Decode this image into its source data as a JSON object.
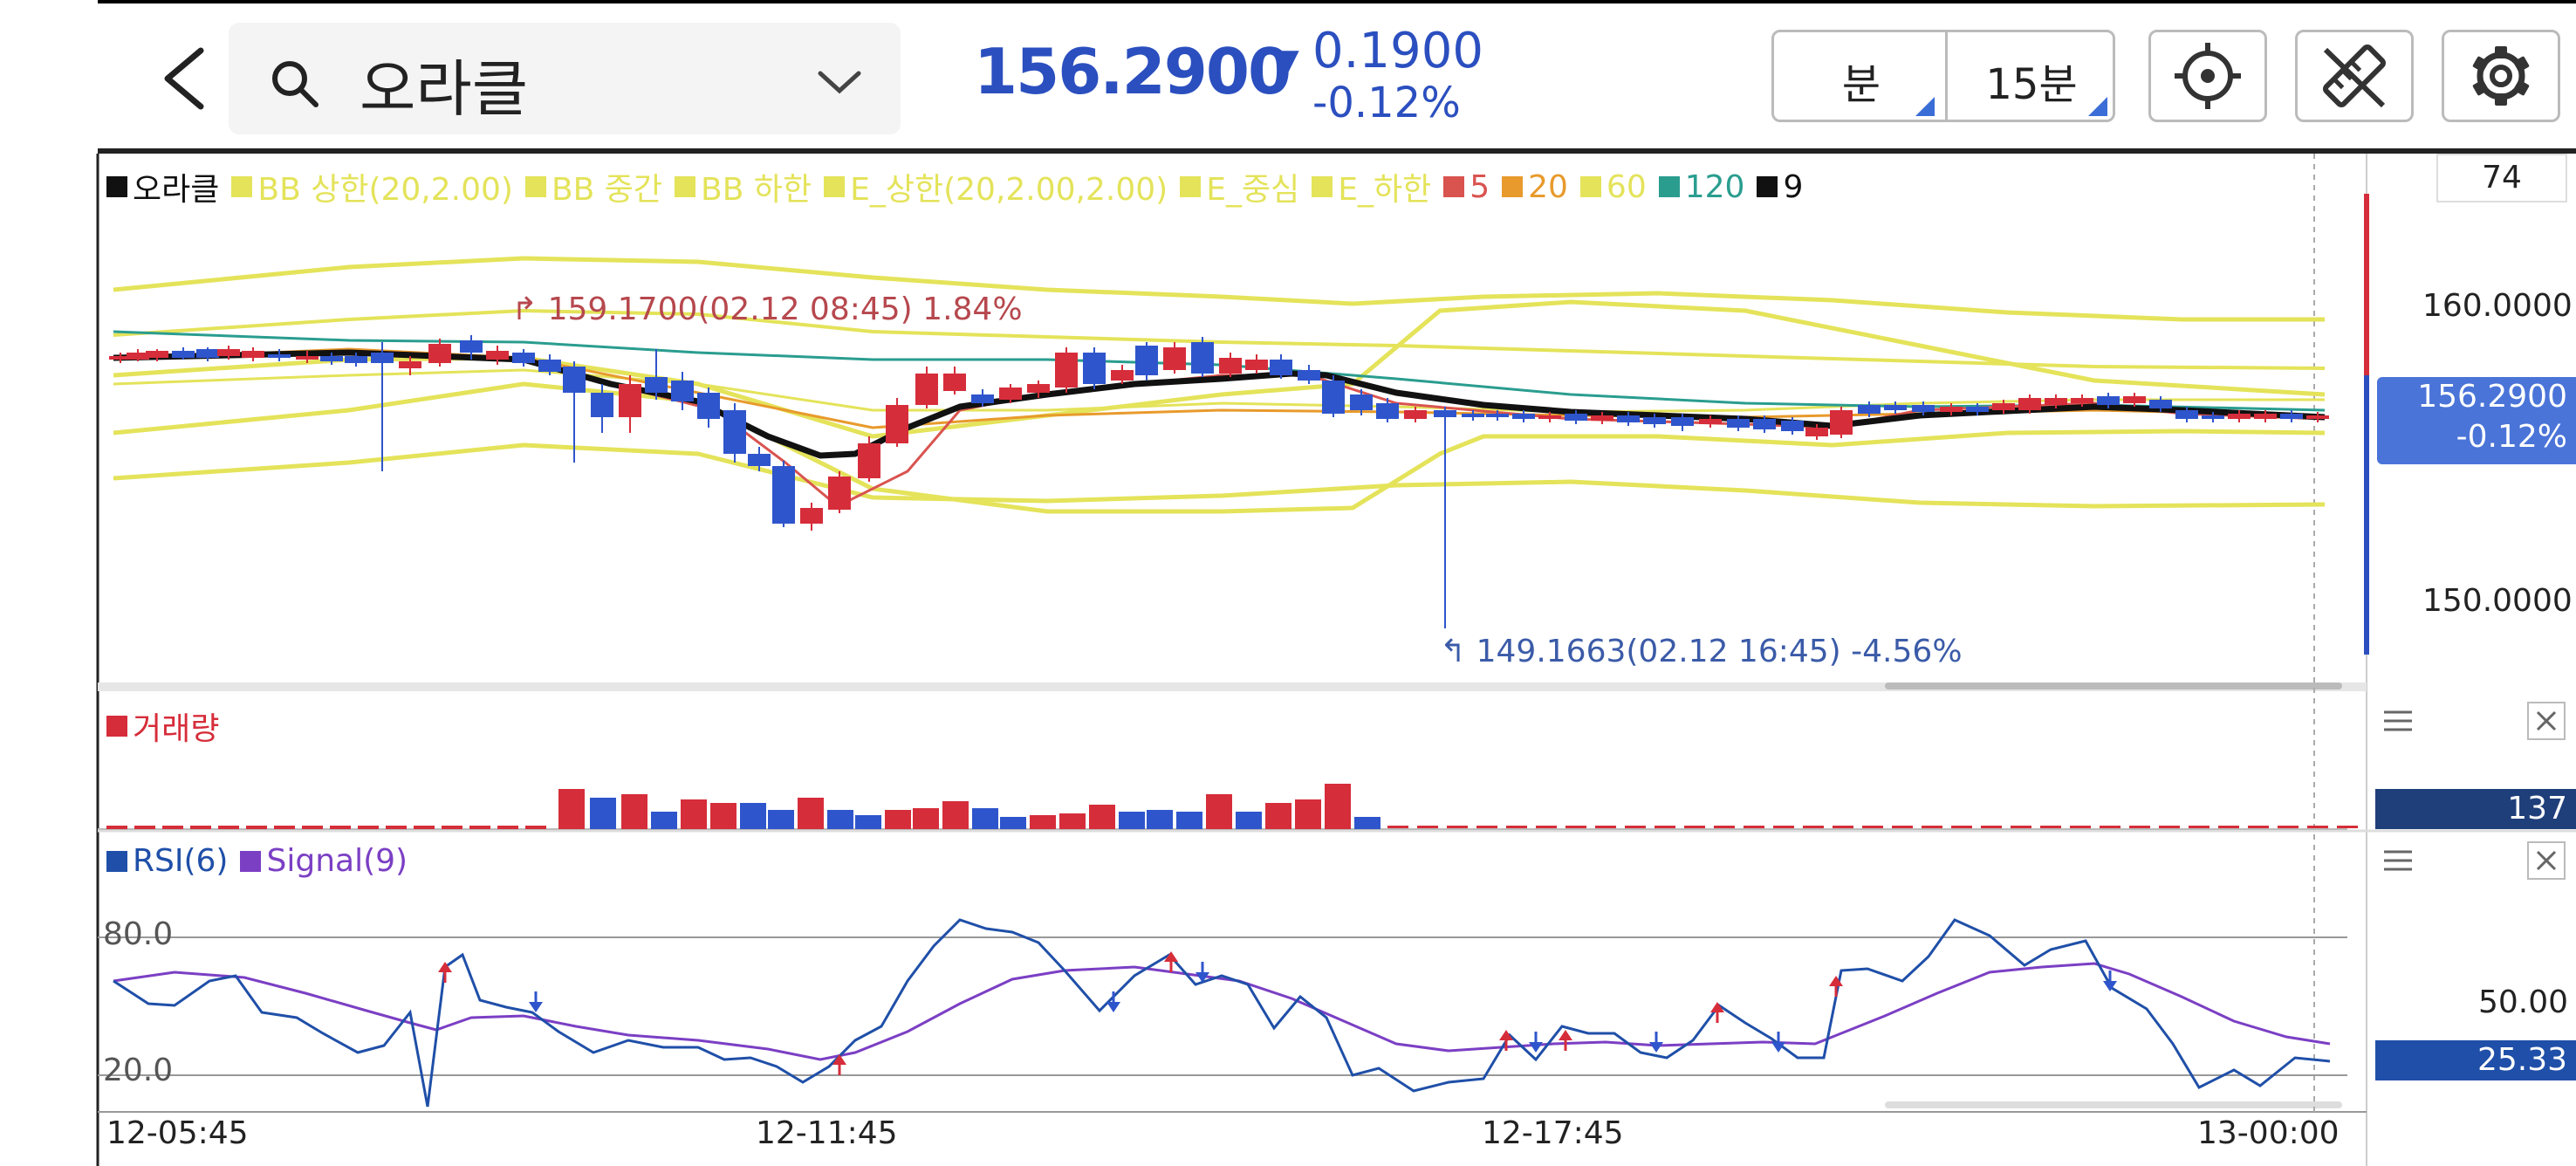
{
  "header": {
    "symbol": "오라클",
    "price": "156.2900",
    "change_arrow": "▼",
    "change_abs": "0.1900",
    "change_pct": "-0.12%",
    "period_unit": "분",
    "period_value": "15분",
    "accent_color": "#2b4fbf"
  },
  "legend": [
    {
      "label": "오라클",
      "color": "#111111"
    },
    {
      "label": "BB 상한(20,2.00)",
      "color": "#e4e35a"
    },
    {
      "label": "BB 중간",
      "color": "#e4e35a"
    },
    {
      "label": "BB 하한",
      "color": "#e4e35a"
    },
    {
      "label": "E_상한(20,2.00,2.00)",
      "color": "#e4e35a"
    },
    {
      "label": "E_중심",
      "color": "#e4e35a"
    },
    {
      "label": "E_하한",
      "color": "#e4e35a"
    },
    {
      "label": "5",
      "color": "#d9534f"
    },
    {
      "label": "20",
      "color": "#e89a2c"
    },
    {
      "label": "60",
      "color": "#e4e35a"
    },
    {
      "label": "120",
      "color": "#2a9d8f"
    },
    {
      "label": "9",
      "color": "#111111"
    }
  ],
  "main_chart": {
    "zoom_value": "74",
    "axis_ticks": [
      "160.0000",
      "150.0000"
    ],
    "current_price_tag": "156.2900",
    "current_change_tag": "-0.12%",
    "high_annotation": "159.1700(02.12 08:45) 1.84%",
    "low_annotation": "149.1663(02.12 16:45) -4.56%"
  },
  "volume_panel": {
    "title": "거래량",
    "color": "#d62d3a",
    "current_value": "137"
  },
  "rsi_panel": {
    "rsi_label": "RSI(6)",
    "signal_label": "Signal(9)",
    "rsi_color": "#1f4fa8",
    "signal_color": "#7b3fc4",
    "level_high": "80.0",
    "level_low": "20.0",
    "axis_tick": "50.00",
    "current_value": "25.33"
  },
  "time_axis": [
    "12-05:45",
    "12-11:45",
    "12-17:45",
    "13-00:00"
  ]
}
